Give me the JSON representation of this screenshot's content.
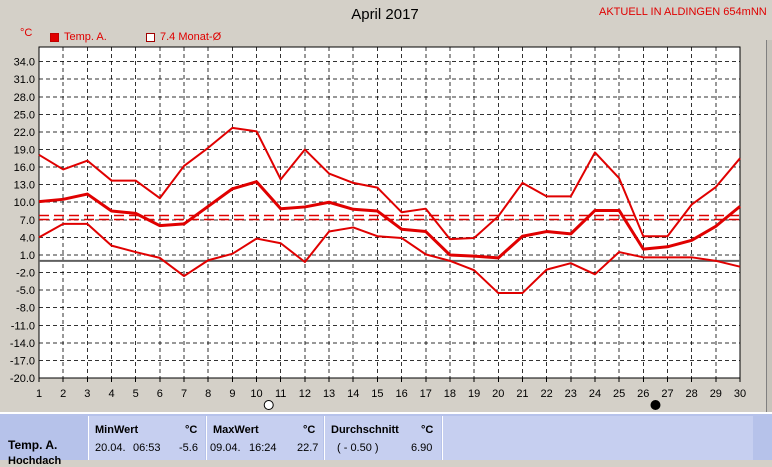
{
  "page": {
    "title": "April 2017",
    "live_label": "AKTUELL IN ALDINGEN 654mNN",
    "unit": "°C"
  },
  "legend": {
    "temp_label": "Temp. A.",
    "avg_label": "7.4 Monat-Ø"
  },
  "chart_data": {
    "type": "line",
    "title": "April 2017",
    "ylabel": "°C",
    "xlabel": "",
    "x": [
      1,
      2,
      3,
      4,
      5,
      6,
      7,
      8,
      9,
      10,
      11,
      12,
      13,
      14,
      15,
      16,
      17,
      18,
      19,
      20,
      21,
      22,
      23,
      24,
      25,
      26,
      27,
      28,
      29,
      30
    ],
    "ylim": [
      -20.0,
      36.5
    ],
    "yticks": [
      "34.0",
      "31.0",
      "28.0",
      "25.0",
      "22.0",
      "19.0",
      "16.0",
      "13.0",
      "10.0",
      "7.0",
      "4.0",
      "1.0",
      "-2.0",
      "-5.0",
      "-8.0",
      "-11.0",
      "-14.0",
      "-17.0",
      "-20.0"
    ],
    "grid": true,
    "zero_line": 0,
    "monthly_average": 7.4,
    "monthly_average_label": "7.4 Monat-Ø",
    "series": [
      {
        "name": "Temp. A.",
        "role": "max",
        "values": [
          18.1,
          15.6,
          17.1,
          13.7,
          13.7,
          10.7,
          16.2,
          19.3,
          22.7,
          22.1,
          13.9,
          19.0,
          14.9,
          13.3,
          12.5,
          8.3,
          8.9,
          3.7,
          3.9,
          7.6,
          13.3,
          11.0,
          11.0,
          18.5,
          14.1,
          4.2,
          4.2,
          9.6,
          12.6,
          17.5
        ]
      },
      {
        "name": "Temp. A.",
        "role": "mean",
        "values": [
          10.1,
          10.5,
          11.4,
          8.5,
          8.1,
          6.0,
          6.3,
          9.3,
          12.3,
          13.5,
          8.9,
          9.2,
          10.0,
          8.8,
          8.5,
          5.4,
          5.0,
          1.0,
          0.8,
          0.5,
          4.2,
          5.0,
          4.6,
          8.6,
          8.6,
          2.0,
          2.4,
          3.5,
          5.9,
          9.3
        ]
      },
      {
        "name": "Temp. A.",
        "role": "min",
        "values": [
          4.0,
          6.3,
          6.3,
          2.6,
          1.5,
          0.5,
          -2.6,
          0.1,
          1.2,
          3.8,
          3.0,
          -0.2,
          5.0,
          5.7,
          4.2,
          3.9,
          1.1,
          0.0,
          -1.6,
          -5.5,
          -5.5,
          -1.5,
          -0.4,
          -2.3,
          1.5,
          0.6,
          0.6,
          0.6,
          0.0,
          -1.0
        ]
      }
    ],
    "markers": [
      {
        "day": 11,
        "symbol": "open-circle"
      },
      {
        "day": 27,
        "symbol": "filled-circle"
      }
    ],
    "colors": {
      "series": "#e00000",
      "average": "#e00000",
      "zero_line": "#606060",
      "grid": "#000000",
      "plot_bg": "#ffffff"
    }
  },
  "stats": {
    "row_label": "Temp. A.",
    "row_label2": "Hochdach",
    "min": {
      "header": "MinWert",
      "unit": "°C",
      "date": "20.04.",
      "time": "06:53",
      "value": "-5.6"
    },
    "max": {
      "header": "MaxWert",
      "unit": "°C",
      "date": "09.04.",
      "time": "16:24",
      "value": "22.7"
    },
    "avg": {
      "header": "Durchschnitt",
      "unit": "°C",
      "note": "( - 0.50 )",
      "value": "6.90"
    }
  }
}
